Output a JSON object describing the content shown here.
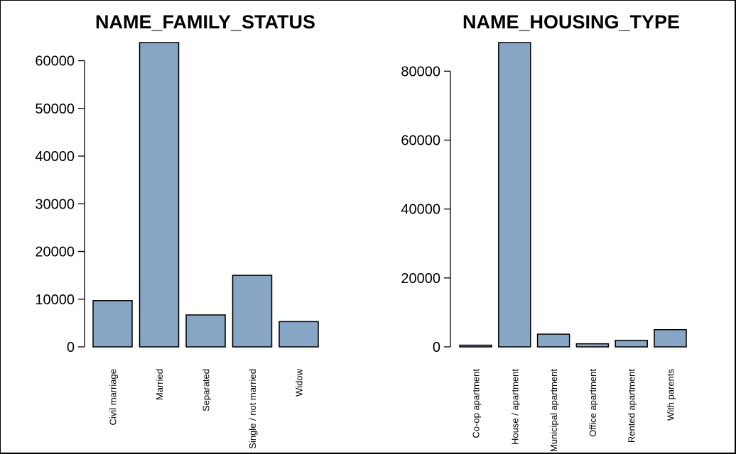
{
  "chart_data": [
    {
      "type": "bar",
      "title": "NAME_FAMILY_STATUS",
      "xlabel": "",
      "ylabel": "",
      "categories": [
        "Civil marriage",
        "Married",
        "Separated",
        "Single / not married",
        "Widow"
      ],
      "values": [
        9700,
        63800,
        6700,
        15000,
        5300
      ],
      "yticks": [
        "0",
        "10000",
        "20000",
        "30000",
        "40000",
        "50000",
        "60000"
      ],
      "ylim": [
        0,
        63800
      ],
      "grid": false,
      "bar_color": "#87a5c5"
    },
    {
      "type": "bar",
      "title": "NAME_HOUSING_TYPE",
      "xlabel": "",
      "ylabel": "",
      "categories": [
        "Co-op apartment",
        "House / apartment",
        "Municipal apartment",
        "Office apartment",
        "Rented apartment",
        "With parents"
      ],
      "values": [
        500,
        88300,
        3700,
        900,
        1900,
        5000
      ],
      "yticks": [
        "0",
        "20000",
        "40000",
        "60000",
        "80000"
      ],
      "ylim": [
        0,
        88300
      ],
      "grid": false,
      "bar_color": "#87a5c5"
    }
  ]
}
